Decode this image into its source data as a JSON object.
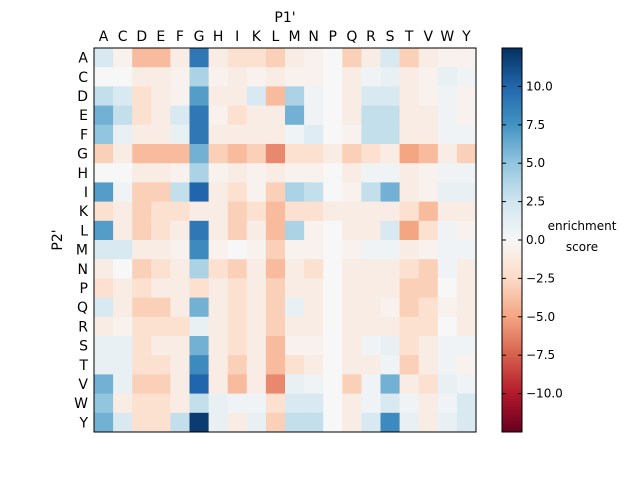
{
  "chart_data": {
    "type": "heatmap",
    "title": "",
    "xlabel": "P1'",
    "ylabel": "P2'",
    "x_categories": [
      "A",
      "C",
      "D",
      "E",
      "F",
      "G",
      "H",
      "I",
      "K",
      "L",
      "M",
      "N",
      "P",
      "Q",
      "R",
      "S",
      "T",
      "V",
      "W",
      "Y"
    ],
    "y_categories": [
      "A",
      "C",
      "D",
      "E",
      "F",
      "G",
      "H",
      "I",
      "K",
      "L",
      "M",
      "N",
      "P",
      "Q",
      "R",
      "S",
      "T",
      "V",
      "W",
      "Y"
    ],
    "colorbar": {
      "label_line1": "enrichment",
      "label_line2": "score",
      "range": [
        -12.5,
        12.5
      ],
      "ticks": [
        10.0,
        7.5,
        5.0,
        2.5,
        0.0,
        -2.5,
        -5.0,
        -7.5,
        -10.0
      ],
      "tick_labels": [
        "10.0",
        "7.5",
        "5.0",
        "2.5",
        "0.0",
        "−2.5",
        "−5.0",
        "−7.5",
        "−10.0"
      ],
      "colormap": "RdBu",
      "colors": [
        "#67001f",
        "#b2182b",
        "#d6604d",
        "#f4a582",
        "#fddbc7",
        "#f7f7f7",
        "#d1e5f0",
        "#92c5de",
        "#4393c3",
        "#2166ac",
        "#053061"
      ]
    },
    "values": [
      [
        2,
        -0.5,
        -4,
        -4,
        -1,
        9,
        -1,
        -2,
        -2,
        -3,
        -1,
        -0.5,
        0,
        -3,
        -1,
        2,
        -3,
        -1,
        -0.5,
        -0.5
      ],
      [
        0,
        0,
        -1,
        -1,
        -0.5,
        4,
        -0.5,
        -1,
        -0.5,
        -1,
        -0.5,
        -0.5,
        0,
        -1,
        0.5,
        1,
        -1,
        -0.5,
        1,
        0.5
      ],
      [
        3,
        2,
        -2,
        -1,
        -0.5,
        7,
        -1,
        -1,
        2,
        -4,
        4,
        0.5,
        0,
        -1,
        2,
        2,
        -1,
        -0.5,
        0.5,
        -0.5
      ],
      [
        6,
        3,
        -2,
        -1,
        2,
        9,
        -0.5,
        -2,
        -1,
        -1,
        6,
        0.5,
        0,
        -1,
        3,
        3,
        -1,
        -1,
        0.5,
        -0.5
      ],
      [
        5,
        1,
        -1,
        -1,
        1,
        9,
        -1,
        -1,
        -1,
        -1,
        0.5,
        1.5,
        0,
        -0.5,
        3,
        3,
        -1,
        -1,
        0.5,
        0.5
      ],
      [
        -3,
        -1,
        -4,
        -4,
        -4,
        6,
        -3,
        -4,
        -3,
        -6,
        -2,
        -2,
        -1,
        -3,
        -2,
        -1,
        -5,
        -4,
        -1,
        -3
      ],
      [
        0,
        0,
        -1,
        -1,
        -0.5,
        4,
        -0.5,
        -1,
        -0.5,
        -1,
        -0.5,
        -0.5,
        0,
        -1,
        0.5,
        0.5,
        -1,
        -0.5,
        0.5,
        0.5
      ],
      [
        7,
        0.5,
        -3,
        -3,
        3,
        10,
        -1,
        -2,
        -0.5,
        -3,
        4,
        3,
        0,
        -0.5,
        3,
        6,
        -1,
        -0.5,
        1,
        1
      ],
      [
        -2,
        -1,
        -3,
        -2,
        -2,
        -1,
        -1,
        -3,
        -2,
        -4,
        -2,
        -2,
        -1,
        -1,
        -1,
        -1,
        -2,
        -4,
        -1,
        -1
      ],
      [
        7,
        -1,
        -3,
        -2,
        -1,
        9,
        -1,
        -3,
        -1,
        -4,
        4,
        -0.5,
        0,
        -1,
        -1,
        2,
        -5,
        -2,
        0.5,
        -0.5
      ],
      [
        2,
        2,
        -1,
        -1,
        -0.5,
        8,
        -0.5,
        0,
        -0.5,
        -3,
        -0.5,
        -0.5,
        0,
        -0.5,
        0.5,
        0.5,
        -1,
        -0.5,
        0.5,
        0.5
      ],
      [
        -1,
        0,
        -3,
        -2,
        -1,
        4,
        -2,
        -3,
        -1,
        -4,
        -1,
        -2,
        0,
        -1,
        -1,
        -1,
        -2,
        -3,
        0.5,
        -1
      ],
      [
        -2,
        -1,
        -2,
        -1,
        -1,
        -2,
        -1,
        -2,
        -1,
        -3,
        -1,
        -1,
        0,
        -1,
        -1,
        -1,
        -3,
        -3,
        0,
        -1
      ],
      [
        2,
        -1,
        -3,
        -3,
        -1,
        6,
        -1,
        -2,
        -1,
        -3,
        1,
        -1,
        0,
        -1,
        -1,
        -0.5,
        -3,
        -2,
        -0.5,
        -1
      ],
      [
        -1,
        -0.5,
        -2,
        -2,
        -2,
        1,
        -1,
        -2,
        -1,
        -3,
        -1,
        -1,
        0,
        -1,
        -1,
        -1,
        -2,
        -2,
        0,
        -1
      ],
      [
        1,
        1,
        -2,
        -1,
        -1,
        6,
        -1,
        -2,
        -1,
        -4,
        -0.5,
        -0.5,
        0,
        -1,
        0.5,
        1,
        -2,
        -1,
        0.5,
        0.5
      ],
      [
        1,
        1,
        -2,
        -2,
        -1,
        8,
        -1,
        -3,
        -1,
        -4,
        -2,
        -1,
        0,
        -1,
        -1,
        0.5,
        -3,
        -1,
        0.5,
        -0.5
      ],
      [
        6,
        1,
        -3,
        -3,
        -1,
        10,
        -1,
        -4,
        -1,
        -6,
        1,
        0.5,
        0,
        -3,
        0.5,
        6,
        -1,
        -2,
        1,
        0.5
      ],
      [
        5,
        -1,
        -2,
        -2,
        -1,
        3,
        1,
        0.5,
        0.5,
        -2,
        2,
        2,
        0,
        -1,
        0.5,
        2,
        0.5,
        -1,
        0.5,
        2
      ],
      [
        6,
        2,
        -2,
        -2,
        3,
        12,
        1,
        -1,
        1,
        -3,
        3,
        3,
        0,
        -1,
        2,
        8,
        1,
        -1,
        1,
        2
      ]
    ]
  }
}
